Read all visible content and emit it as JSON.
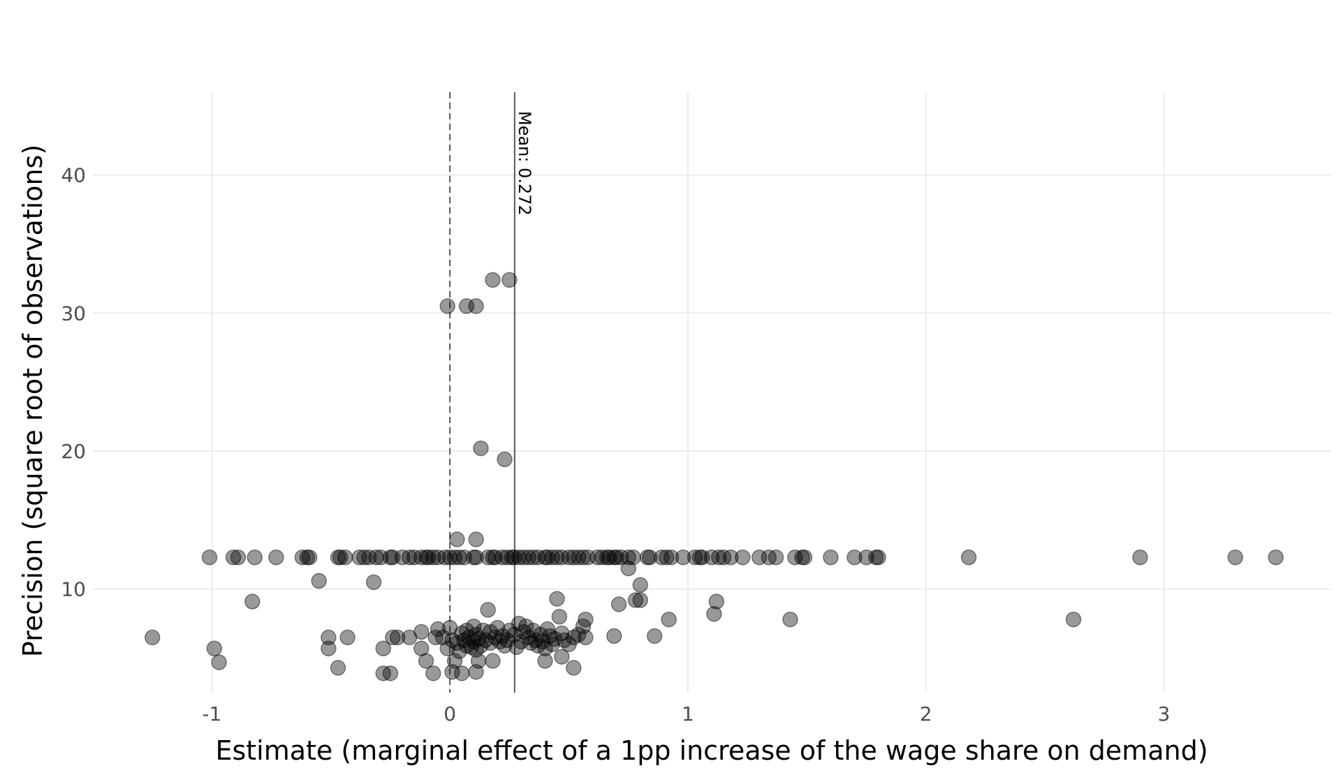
{
  "chart_data": {
    "type": "scatter",
    "title": "",
    "xlabel": "Estimate (marginal effect of a 1pp increase of the wage share on demand)",
    "ylabel": "Precision (square root of observations)",
    "xlim": [
      -1.5,
      3.7
    ],
    "ylim": [
      2.5,
      46
    ],
    "x_ticks": [
      -1,
      0,
      1,
      2,
      3
    ],
    "x_tick_labels": [
      "-1",
      "0",
      "1",
      "2",
      "3"
    ],
    "y_ticks": [
      10,
      20,
      30,
      40
    ],
    "y_tick_labels": [
      "10",
      "20",
      "30",
      "40"
    ],
    "grid": true,
    "legend": "none",
    "reference_lines": [
      {
        "axis": "x",
        "value": 0,
        "style": "dashed",
        "label": ""
      },
      {
        "axis": "x",
        "value": 0.272,
        "style": "solid",
        "label": "Mean: 0.272"
      }
    ],
    "point_color": "#000000",
    "points": [
      [
        -1.25,
        6.5
      ],
      [
        -0.99,
        5.7
      ],
      [
        -0.97,
        4.7
      ],
      [
        -0.51,
        6.5
      ],
      [
        -0.51,
        5.7
      ],
      [
        -0.47,
        4.3
      ],
      [
        -0.43,
        6.5
      ],
      [
        -0.28,
        5.7
      ],
      [
        -0.28,
        3.9
      ],
      [
        -0.25,
        3.9
      ],
      [
        -0.24,
        6.5
      ],
      [
        -0.22,
        6.5
      ],
      [
        -0.17,
        6.5
      ],
      [
        -0.12,
        6.9
      ],
      [
        -0.12,
        5.7
      ],
      [
        -0.1,
        4.8
      ],
      [
        -0.07,
        3.9
      ],
      [
        -0.06,
        6.5
      ],
      [
        -0.05,
        7.1
      ],
      [
        -0.03,
        6.5
      ],
      [
        -0.01,
        5.7
      ],
      [
        0.0,
        7.2
      ],
      [
        0.01,
        6.3
      ],
      [
        0.01,
        4.0
      ],
      [
        0.02,
        4.8
      ],
      [
        0.03,
        6.1
      ],
      [
        0.04,
        5.5
      ],
      [
        0.05,
        6.8
      ],
      [
        0.05,
        3.9
      ],
      [
        0.06,
        6.3
      ],
      [
        0.07,
        5.9
      ],
      [
        0.07,
        7.0
      ],
      [
        0.08,
        6.5
      ],
      [
        0.09,
        5.8
      ],
      [
        0.1,
        6.2
      ],
      [
        0.1,
        7.3
      ],
      [
        0.11,
        6.7
      ],
      [
        0.11,
        5.6
      ],
      [
        0.11,
        4.0
      ],
      [
        0.12,
        6.4
      ],
      [
        0.12,
        4.8
      ],
      [
        0.13,
        5.9
      ],
      [
        0.14,
        7.0
      ],
      [
        0.15,
        6.3
      ],
      [
        0.16,
        8.5
      ],
      [
        0.17,
        6.9
      ],
      [
        0.17,
        6.1
      ],
      [
        0.18,
        4.8
      ],
      [
        0.19,
        6.5
      ],
      [
        0.2,
        7.2
      ],
      [
        0.21,
        6.2
      ],
      [
        0.22,
        6.6
      ],
      [
        0.23,
        5.9
      ],
      [
        0.24,
        6.3
      ],
      [
        0.25,
        7.0
      ],
      [
        0.27,
        6.7
      ],
      [
        0.28,
        5.8
      ],
      [
        0.29,
        7.5
      ],
      [
        0.3,
        6.2
      ],
      [
        0.31,
        6.9
      ],
      [
        0.32,
        7.3
      ],
      [
        0.33,
        6.5
      ],
      [
        0.34,
        6.1
      ],
      [
        0.35,
        7.0
      ],
      [
        0.36,
        6.3
      ],
      [
        0.37,
        5.9
      ],
      [
        0.38,
        6.7
      ],
      [
        0.39,
        6.2
      ],
      [
        0.4,
        5.7
      ],
      [
        0.4,
        4.8
      ],
      [
        0.41,
        7.1
      ],
      [
        0.42,
        6.6
      ],
      [
        0.43,
        6.0
      ],
      [
        0.44,
        6.4
      ],
      [
        0.45,
        9.3
      ],
      [
        0.46,
        8.0
      ],
      [
        0.47,
        6.8
      ],
      [
        0.47,
        5.1
      ],
      [
        0.48,
        6.3
      ],
      [
        0.5,
        6.0
      ],
      [
        0.52,
        6.5
      ],
      [
        0.52,
        4.3
      ],
      [
        0.54,
        6.7
      ],
      [
        0.56,
        7.3
      ],
      [
        0.57,
        6.5
      ],
      [
        0.57,
        7.8
      ],
      [
        0.69,
        6.6
      ],
      [
        0.71,
        8.9
      ],
      [
        0.75,
        11.5
      ],
      [
        0.78,
        9.2
      ],
      [
        0.8,
        9.2
      ],
      [
        0.8,
        10.3
      ],
      [
        0.86,
        6.6
      ],
      [
        0.92,
        7.8
      ],
      [
        1.11,
        8.2
      ],
      [
        1.12,
        9.1
      ],
      [
        1.43,
        7.8
      ],
      [
        2.62,
        7.8
      ],
      [
        -0.83,
        9.1
      ],
      [
        -0.55,
        10.6
      ],
      [
        -0.32,
        10.5
      ],
      [
        0.03,
        13.6
      ],
      [
        0.11,
        13.6
      ],
      [
        0.13,
        20.2
      ],
      [
        0.23,
        19.4
      ],
      [
        -0.01,
        30.5
      ],
      [
        0.07,
        30.5
      ],
      [
        0.11,
        30.5
      ],
      [
        0.18,
        32.4
      ],
      [
        0.25,
        32.4
      ],
      [
        -1.01,
        12.3
      ],
      [
        -0.91,
        12.3
      ],
      [
        -0.89,
        12.3
      ],
      [
        -0.82,
        12.3
      ],
      [
        -0.73,
        12.3
      ],
      [
        -0.62,
        12.3
      ],
      [
        -0.6,
        12.3
      ],
      [
        -0.59,
        12.3
      ],
      [
        -0.47,
        12.3
      ],
      [
        -0.46,
        12.3
      ],
      [
        -0.44,
        12.3
      ],
      [
        -0.38,
        12.3
      ],
      [
        -0.36,
        12.3
      ],
      [
        -0.34,
        12.3
      ],
      [
        -0.31,
        12.3
      ],
      [
        -0.29,
        12.3
      ],
      [
        -0.25,
        12.3
      ],
      [
        -0.24,
        12.3
      ],
      [
        -0.2,
        12.3
      ],
      [
        -0.17,
        12.3
      ],
      [
        -0.15,
        12.3
      ],
      [
        -0.12,
        12.3
      ],
      [
        -0.1,
        12.3
      ],
      [
        -0.09,
        12.3
      ],
      [
        -0.07,
        12.3
      ],
      [
        -0.05,
        12.3
      ],
      [
        -0.02,
        12.3
      ],
      [
        0.0,
        12.3
      ],
      [
        0.02,
        12.3
      ],
      [
        0.04,
        12.3
      ],
      [
        0.06,
        12.3
      ],
      [
        0.1,
        12.3
      ],
      [
        0.11,
        12.3
      ],
      [
        0.16,
        12.3
      ],
      [
        0.18,
        12.3
      ],
      [
        0.19,
        12.3
      ],
      [
        0.22,
        12.3
      ],
      [
        0.24,
        12.3
      ],
      [
        0.26,
        12.3
      ],
      [
        0.27,
        12.3
      ],
      [
        0.29,
        12.3
      ],
      [
        0.31,
        12.3
      ],
      [
        0.33,
        12.3
      ],
      [
        0.35,
        12.3
      ],
      [
        0.37,
        12.3
      ],
      [
        0.4,
        12.3
      ],
      [
        0.41,
        12.3
      ],
      [
        0.43,
        12.3
      ],
      [
        0.45,
        12.3
      ],
      [
        0.47,
        12.3
      ],
      [
        0.5,
        12.3
      ],
      [
        0.52,
        12.3
      ],
      [
        0.54,
        12.3
      ],
      [
        0.56,
        12.3
      ],
      [
        0.58,
        12.3
      ],
      [
        0.62,
        12.3
      ],
      [
        0.64,
        12.3
      ],
      [
        0.66,
        12.3
      ],
      [
        0.67,
        12.3
      ],
      [
        0.69,
        12.3
      ],
      [
        0.7,
        12.3
      ],
      [
        0.72,
        12.3
      ],
      [
        0.75,
        12.3
      ],
      [
        0.77,
        12.3
      ],
      [
        0.83,
        12.3
      ],
      [
        0.84,
        12.3
      ],
      [
        0.89,
        12.3
      ],
      [
        0.91,
        12.3
      ],
      [
        0.93,
        12.3
      ],
      [
        0.98,
        12.3
      ],
      [
        1.03,
        12.3
      ],
      [
        1.05,
        12.3
      ],
      [
        1.06,
        12.3
      ],
      [
        1.1,
        12.3
      ],
      [
        1.13,
        12.3
      ],
      [
        1.15,
        12.3
      ],
      [
        1.18,
        12.3
      ],
      [
        1.23,
        12.3
      ],
      [
        1.3,
        12.3
      ],
      [
        1.34,
        12.3
      ],
      [
        1.37,
        12.3
      ],
      [
        1.45,
        12.3
      ],
      [
        1.48,
        12.3
      ],
      [
        1.49,
        12.3
      ],
      [
        1.6,
        12.3
      ],
      [
        1.7,
        12.3
      ],
      [
        1.75,
        12.3
      ],
      [
        1.79,
        12.3
      ],
      [
        1.8,
        12.3
      ],
      [
        2.18,
        12.3
      ],
      [
        2.9,
        12.3
      ],
      [
        3.3,
        12.3
      ],
      [
        3.47,
        12.3
      ]
    ]
  }
}
